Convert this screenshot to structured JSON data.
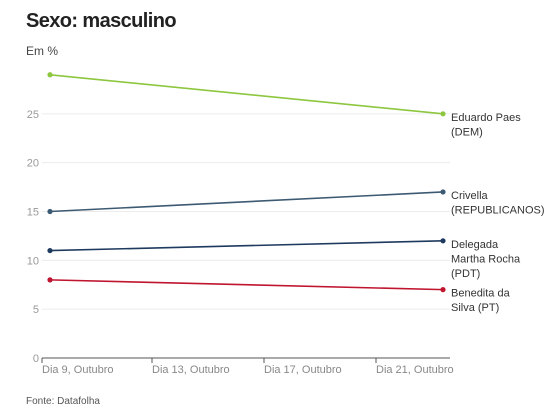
{
  "header": {
    "title": "Sexo: masculino",
    "subtitle": "Em %"
  },
  "footer": {
    "source": "Fonte: Datafolha"
  },
  "chart_data": {
    "type": "line",
    "ylabel": "Em %",
    "ylim": [
      0,
      30
    ],
    "yticks": [
      "0",
      "5",
      "10",
      "15",
      "20",
      "25"
    ],
    "x_ticks": [
      "Dia 9, Outubro",
      "Dia 13, Outubro",
      "Dia 17, Outubro",
      "Dia 21, Outubro"
    ],
    "x_dates": [
      "2020-10-09",
      "2020-10-22"
    ],
    "grid": true,
    "series": [
      {
        "name": "Eduardo Paes (DEM)",
        "label_lines": [
          "Eduardo Paes",
          "(DEM)"
        ],
        "color": "#8dc63f",
        "values": [
          29,
          25
        ]
      },
      {
        "name": "Crivella (REPUBLICANOS)",
        "label_lines": [
          "Crivella",
          "(REPUBLICANOS)"
        ],
        "color": "#3d5a73",
        "values": [
          15,
          17
        ]
      },
      {
        "name": "Delegada Martha Rocha (PDT)",
        "label_lines": [
          "Delegada",
          "Martha Rocha",
          "(PDT)"
        ],
        "color": "#1f3a5f",
        "values": [
          11,
          12
        ]
      },
      {
        "name": "Benedita da Silva (PT)",
        "label_lines": [
          "Benedita da",
          "Silva (PT)"
        ],
        "color": "#c0152f",
        "values": [
          8,
          7
        ]
      }
    ]
  }
}
